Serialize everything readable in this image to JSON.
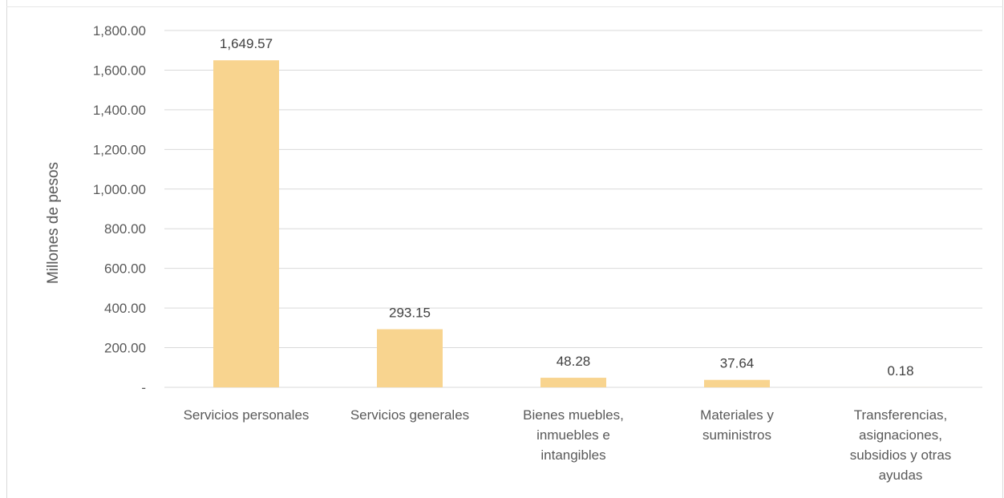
{
  "chart_data": {
    "type": "bar",
    "title": "",
    "xlabel": "",
    "ylabel": "Millones de pesos",
    "ylim": [
      0,
      1800
    ],
    "yticks": [
      0,
      200,
      400,
      600,
      800,
      1000,
      1200,
      1400,
      1600,
      1800
    ],
    "ytick_labels": [
      "-",
      "200.00",
      "400.00",
      "600.00",
      "800.00",
      "1,000.00",
      "1,200.00",
      "1,400.00",
      "1,600.00",
      "1,800.00"
    ],
    "grid": true,
    "legend": "none",
    "bar_color": "#f8d48f",
    "categories": [
      "Servicios personales",
      "Servicios generales",
      "Bienes muebles, inmuebles e intangibles",
      "Materiales y suministros",
      "Transferencias, asignaciones, subsidios y otras ayudas"
    ],
    "category_lines": [
      [
        "Servicios personales"
      ],
      [
        "Servicios generales"
      ],
      [
        "Bienes muebles,",
        "inmuebles e",
        "intangibles"
      ],
      [
        "Materiales y",
        "suministros"
      ],
      [
        "Transferencias,",
        "asignaciones,",
        "subsidios y otras",
        "ayudas"
      ]
    ],
    "values": [
      1649.57,
      293.15,
      48.28,
      37.64,
      0.18
    ],
    "data_labels": [
      "1,649.57",
      "293.15",
      "48.28",
      "37.64",
      "0.18"
    ]
  }
}
